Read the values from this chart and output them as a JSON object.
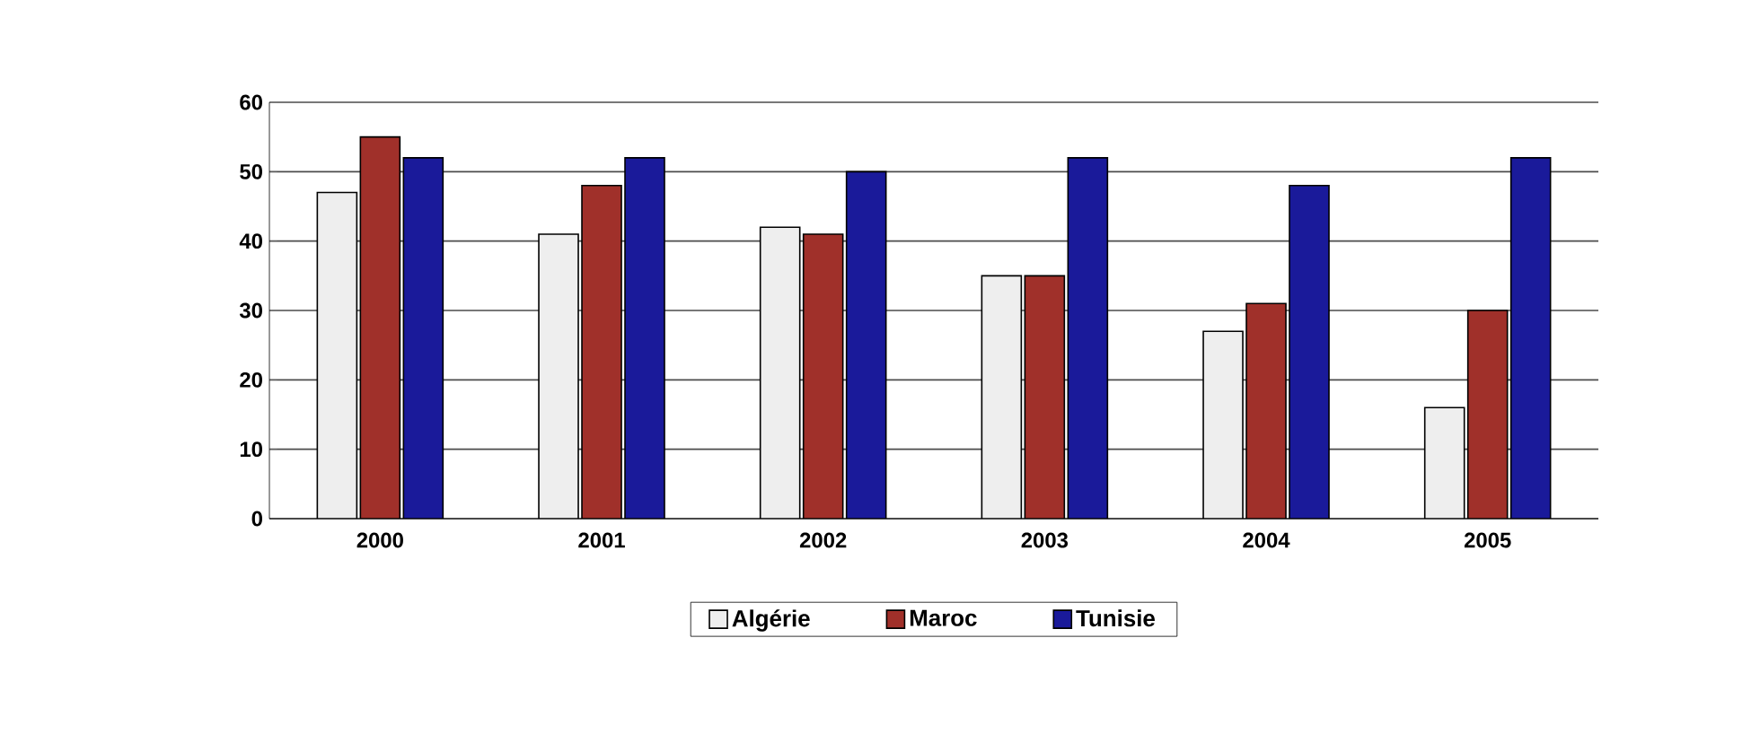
{
  "chart_data": {
    "type": "bar",
    "categories": [
      "2000",
      "2001",
      "2002",
      "2003",
      "2004",
      "2005"
    ],
    "series": [
      {
        "name": "Algérie",
        "color": "#eeeeee",
        "values": [
          47,
          41,
          42,
          35,
          27,
          16
        ]
      },
      {
        "name": "Maroc",
        "color": "#a0302a",
        "values": [
          55,
          48,
          41,
          35,
          31,
          30
        ]
      },
      {
        "name": "Tunisie",
        "color": "#1a1a9a",
        "values": [
          52,
          52,
          50,
          52,
          48,
          52
        ]
      }
    ],
    "ylim": [
      0,
      60
    ],
    "yticks": [
      0,
      10,
      20,
      30,
      40,
      50,
      60
    ],
    "grid": "y",
    "legend": "bottom"
  }
}
